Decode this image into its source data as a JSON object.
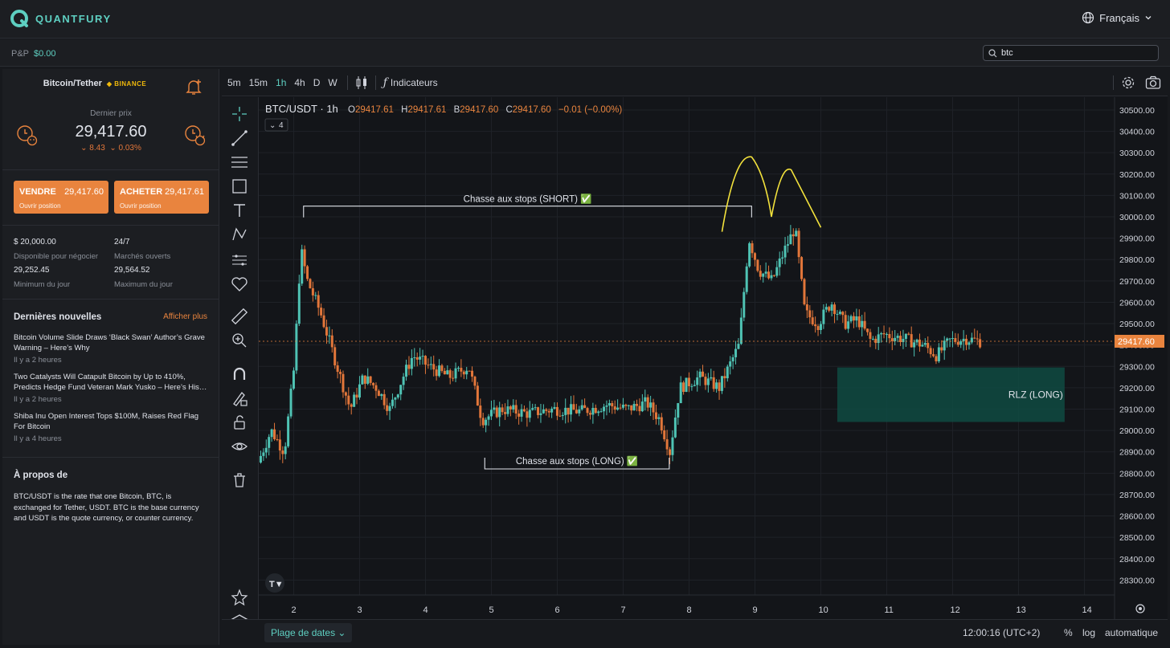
{
  "app": {
    "brand": "QUANTFURY",
    "language": "Français"
  },
  "subbar": {
    "pnl_label": "P&P",
    "pnl_value": "$0.00",
    "search_value": "btc"
  },
  "instrument": {
    "pair": "Bitcoin/Tether",
    "exchange": "BINANCE",
    "last_label": "Dernier prix",
    "last_price": "29,417.60",
    "change_abs": "⌄ 8.43",
    "change_pct": "⌄ 0.03%"
  },
  "sell": {
    "label": "VENDRE",
    "price": "29,417.60",
    "sub": "Ouvrir position"
  },
  "buy": {
    "label": "ACHETER",
    "price": "29,417.61",
    "sub": "Ouvrir position"
  },
  "stats": [
    {
      "value": "$ 20,000.00",
      "label": "Disponible pour négocier"
    },
    {
      "value": "24/7",
      "label": "Marchés ouverts"
    },
    {
      "value": "29,252.45",
      "label": "Minimum du jour"
    },
    {
      "value": "29,564.52",
      "label": "Maximum du jour"
    }
  ],
  "news": {
    "title": "Dernières nouvelles",
    "more": "Afficher plus",
    "items": [
      {
        "headline": "Bitcoin Volume Slide Draws ‘Black Swan’ Author’s Grave Warning – Here’s Why",
        "ago": "Il y a 2 heures"
      },
      {
        "headline": "Two Catalysts Will Catapult Bitcoin by Up to 410%, Predicts Hedge Fund Veteran Mark Yusko – Here’s His…",
        "ago": "Il y a 2 heures"
      },
      {
        "headline": "Shiba Inu Open Interest Tops $100M, Raises Red Flag For Bitcoin",
        "ago": "Il y a 4 heures"
      }
    ]
  },
  "about": {
    "title": "À propos de",
    "text": "BTC/USDT is the rate that one Bitcoin, BTC, is exchanged for Tether, USDT. BTC is the base currency and USDT is the quote currency, or counter currency."
  },
  "toolbar": {
    "timeframes": [
      "5m",
      "15m",
      "1h",
      "4h",
      "D",
      "W"
    ],
    "active_timeframe": "1h",
    "indicators": "Indicateurs"
  },
  "legend": {
    "symbol": "BTC/USDT · 1h",
    "o_label": "O",
    "o": "29417.61",
    "h_label": "H",
    "h": "29417.61",
    "b_label": "B",
    "b": "29417.60",
    "c_label": "C",
    "c": "29417.60",
    "change": "−0.01 (−0.00%)",
    "collapse": "4"
  },
  "bottombar": {
    "range": "Plage de dates ⌄",
    "clock": "12:00:16 (UTC+2)",
    "pct": "%",
    "log": "log",
    "auto": "automatique"
  },
  "colors": {
    "accent": "#5ecfc1",
    "orange": "#e9843e",
    "bull": "#4fc3b4",
    "bear": "#e2763a"
  },
  "chart_data": {
    "type": "candlestick",
    "y_ticks": [
      "30500.00",
      "30400.00",
      "30300.00",
      "30200.00",
      "30100.00",
      "30000.00",
      "29900.00",
      "29800.00",
      "29700.00",
      "29600.00",
      "29500.00",
      "29400.00",
      "29300.00",
      "29200.00",
      "29100.00",
      "29000.00",
      "28900.00",
      "28800.00",
      "28700.00",
      "28600.00",
      "28500.00",
      "28400.00",
      "28300.00"
    ],
    "x_ticks": [
      "2",
      "3",
      "4",
      "5",
      "6",
      "7",
      "8",
      "9",
      "10",
      "11",
      "12",
      "13",
      "14"
    ],
    "ylim": [
      28230,
      30560
    ],
    "last_price_label": "29417.60",
    "last_price": 29417.6,
    "path": [
      [
        1.5,
        28850
      ],
      [
        1.7,
        29000
      ],
      [
        1.9,
        28900
      ],
      [
        2.05,
        29300
      ],
      [
        2.15,
        29850
      ],
      [
        2.25,
        29700
      ],
      [
        2.45,
        29550
      ],
      [
        2.7,
        29300
      ],
      [
        2.9,
        29100
      ],
      [
        3.1,
        29250
      ],
      [
        3.3,
        29200
      ],
      [
        3.5,
        29100
      ],
      [
        3.7,
        29250
      ],
      [
        3.85,
        29350
      ],
      [
        4.1,
        29300
      ],
      [
        4.4,
        29250
      ],
      [
        4.7,
        29300
      ],
      [
        4.9,
        29050
      ],
      [
        5.2,
        29100
      ],
      [
        5.6,
        29080
      ],
      [
        6.0,
        29100
      ],
      [
        6.4,
        29090
      ],
      [
        6.8,
        29120
      ],
      [
        7.1,
        29100
      ],
      [
        7.4,
        29130
      ],
      [
        7.6,
        29050
      ],
      [
        7.75,
        28900
      ],
      [
        7.9,
        29200
      ],
      [
        8.2,
        29250
      ],
      [
        8.5,
        29200
      ],
      [
        8.8,
        29400
      ],
      [
        8.95,
        29900
      ],
      [
        9.1,
        29750
      ],
      [
        9.3,
        29700
      ],
      [
        9.5,
        29850
      ],
      [
        9.65,
        29950
      ],
      [
        9.8,
        29550
      ],
      [
        10.0,
        29500
      ],
      [
        10.2,
        29600
      ],
      [
        10.4,
        29500
      ],
      [
        10.6,
        29520
      ],
      [
        10.8,
        29420
      ],
      [
        11.0,
        29450
      ],
      [
        11.3,
        29430
      ],
      [
        11.6,
        29400
      ],
      [
        11.8,
        29350
      ],
      [
        12.0,
        29420
      ],
      [
        12.25,
        29430
      ],
      [
        12.45,
        29417.6
      ]
    ],
    "annotations": [
      {
        "text": "Chasse aux stops (SHORT) ✅",
        "x1": 2.15,
        "x2": 8.95,
        "y": 30050
      },
      {
        "text": "Chasse aux stops (LONG) ✅",
        "x1": 4.9,
        "x2": 7.7,
        "y": 28820
      },
      {
        "text": "RLZ (LONG)",
        "x1": 10.25,
        "x2": 13.7,
        "y1": 29040,
        "y2": 29295
      }
    ]
  }
}
